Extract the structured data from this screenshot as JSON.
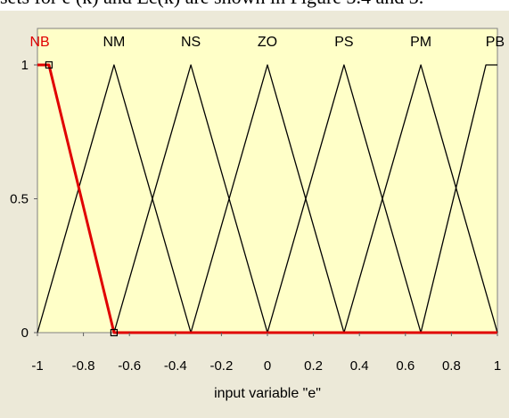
{
  "caption": "sets for e (k) and Ec(k) are shown in Figure 3.4 and 3.",
  "colors": {
    "plot_background": "#ffffc8",
    "window_background": "#ece9d8",
    "selected": "#e00000",
    "normal": "#000000"
  },
  "chart_data": {
    "type": "line",
    "title": "",
    "xlabel": "input variable \"e\"",
    "ylabel": "",
    "xlim": [
      -1,
      1
    ],
    "ylim": [
      0,
      1
    ],
    "x_ticks": [
      "-1",
      "-0.8",
      "-0.6",
      "-0.4",
      "-0.2",
      "0",
      "0.2",
      "0.4",
      "0.6",
      "0.8",
      "1"
    ],
    "y_ticks": [
      "0",
      "0.5",
      "1"
    ],
    "grid": false,
    "legend": "none",
    "selected_series": "NB",
    "series": [
      {
        "name": "NB",
        "x": [
          -1,
          -0.95,
          -0.667,
          1
        ],
        "y": [
          1,
          1,
          0,
          0
        ],
        "selected": true
      },
      {
        "name": "NM",
        "x": [
          -1,
          -0.667,
          -0.333
        ],
        "y": [
          0,
          1,
          0
        ]
      },
      {
        "name": "NS",
        "x": [
          -0.667,
          -0.333,
          0
        ],
        "y": [
          0,
          1,
          0
        ]
      },
      {
        "name": "ZO",
        "x": [
          -0.333,
          0,
          0.333
        ],
        "y": [
          0,
          1,
          0
        ]
      },
      {
        "name": "PS",
        "x": [
          0,
          0.333,
          0.667
        ],
        "y": [
          0,
          1,
          0
        ]
      },
      {
        "name": "PM",
        "x": [
          0.333,
          0.667,
          1
        ],
        "y": [
          0,
          1,
          0
        ]
      },
      {
        "name": "PB",
        "x": [
          0.667,
          0.95,
          1
        ],
        "y": [
          0,
          1,
          1
        ]
      }
    ]
  }
}
